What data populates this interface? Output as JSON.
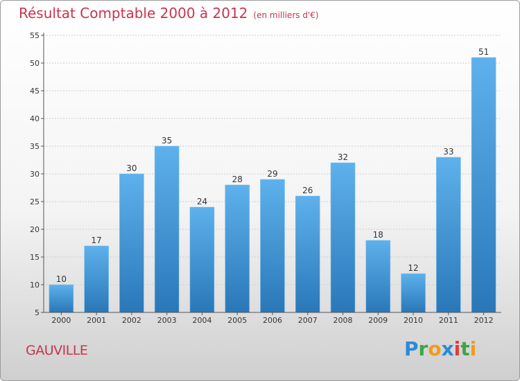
{
  "header": {
    "title": "Résultat Comptable 2000 à 2012",
    "unit": "(en milliers d'€)"
  },
  "footer": {
    "place": "GAUVILLE",
    "logo_letters": [
      {
        "ch": "P",
        "color": "#2a8ad8"
      },
      {
        "ch": "r",
        "color": "#3aa64a"
      },
      {
        "ch": "o",
        "color": "#f39a1b"
      },
      {
        "ch": "x",
        "color": "#2a8ad8"
      },
      {
        "ch": "i",
        "color": "#e23a3a"
      },
      {
        "ch": "t",
        "color": "#3aa64a"
      },
      {
        "ch": "i",
        "color": "#f39a1b"
      }
    ]
  },
  "colors": {
    "bar_light": "#5eb1ec",
    "bar_dark": "#2a77b8",
    "title": "#c8344e",
    "grid": "#cccccc"
  },
  "chart_data": {
    "type": "bar",
    "title": "Résultat Comptable 2000 à 2012",
    "subtitle": "(en milliers d'€)",
    "xlabel": "",
    "ylabel": "",
    "categories": [
      "2000",
      "2001",
      "2002",
      "2003",
      "2004",
      "2005",
      "2006",
      "2007",
      "2008",
      "2009",
      "2010",
      "2011",
      "2012"
    ],
    "values": [
      10,
      17,
      30,
      35,
      24,
      28,
      29,
      26,
      32,
      18,
      12,
      33,
      51
    ],
    "ylim": [
      5,
      55
    ],
    "yticks": [
      5,
      10,
      15,
      20,
      25,
      30,
      35,
      40,
      45,
      50,
      55
    ],
    "grid": true,
    "legend": "none"
  }
}
